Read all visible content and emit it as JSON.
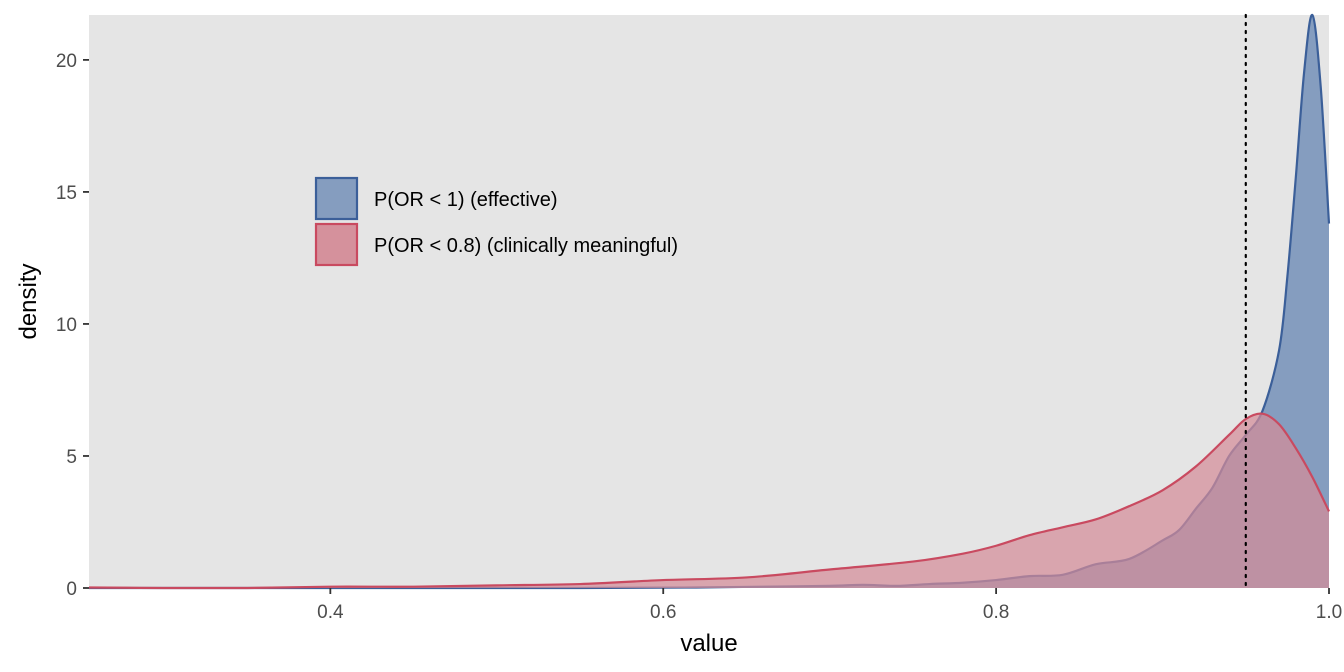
{
  "chart_data": {
    "type": "area",
    "title": "",
    "xlabel": "value",
    "ylabel": "density",
    "xlim": [
      0.255,
      1.0
    ],
    "ylim": [
      0,
      21.7
    ],
    "x_ticks": [
      0.4,
      0.6,
      0.8,
      1.0
    ],
    "x_tick_labels": [
      "0.4",
      "0.6",
      "0.8",
      "1.0"
    ],
    "y_ticks": [
      0,
      5,
      10,
      15,
      20
    ],
    "y_tick_labels": [
      "0",
      "5",
      "10",
      "15",
      "20"
    ],
    "grid": false,
    "background": "#e5e5e5",
    "legend_position": "top-left",
    "reference_line": {
      "x": 0.95,
      "style": "dotted",
      "color": "#000000"
    },
    "series": [
      {
        "name": "P(OR < 1) (effective)",
        "fill": "#7f99bd",
        "stroke": "#3b5f99",
        "x": [
          0.255,
          0.4,
          0.55,
          0.62,
          0.66,
          0.7,
          0.72,
          0.74,
          0.76,
          0.78,
          0.8,
          0.82,
          0.84,
          0.86,
          0.88,
          0.9,
          0.91,
          0.92,
          0.93,
          0.94,
          0.95,
          0.96,
          0.97,
          0.975,
          0.98,
          0.985,
          0.99,
          0.995,
          1.0
        ],
        "values": [
          0.0,
          0.0,
          0.0,
          0.02,
          0.05,
          0.08,
          0.12,
          0.08,
          0.15,
          0.2,
          0.3,
          0.45,
          0.5,
          0.9,
          1.1,
          1.8,
          2.2,
          3.0,
          3.8,
          5.0,
          5.8,
          6.7,
          9.0,
          11.8,
          15.5,
          19.5,
          21.7,
          19.0,
          13.8
        ]
      },
      {
        "name": "P(OR < 0.8) (clinically meaningful)",
        "fill": "#d48c98",
        "stroke": "#c94a60",
        "x": [
          0.255,
          0.3,
          0.35,
          0.4,
          0.45,
          0.5,
          0.55,
          0.6,
          0.65,
          0.7,
          0.75,
          0.78,
          0.8,
          0.82,
          0.84,
          0.86,
          0.88,
          0.9,
          0.92,
          0.94,
          0.95,
          0.96,
          0.97,
          0.98,
          0.99,
          1.0
        ],
        "values": [
          0.02,
          0.0,
          0.0,
          0.05,
          0.05,
          0.1,
          0.15,
          0.3,
          0.4,
          0.7,
          1.0,
          1.3,
          1.6,
          2.0,
          2.3,
          2.6,
          3.1,
          3.7,
          4.6,
          5.8,
          6.4,
          6.6,
          6.2,
          5.3,
          4.2,
          2.9
        ]
      }
    ]
  }
}
